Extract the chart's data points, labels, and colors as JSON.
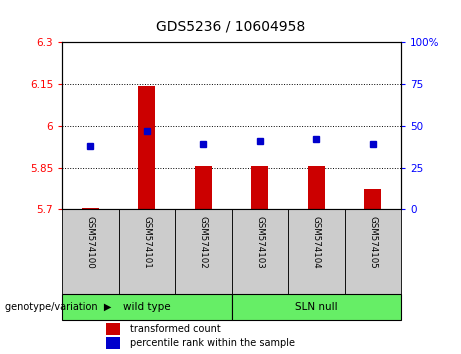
{
  "title": "GDS5236 / 10604958",
  "samples": [
    "GSM574100",
    "GSM574101",
    "GSM574102",
    "GSM574103",
    "GSM574104",
    "GSM574105"
  ],
  "red_values": [
    5.705,
    6.145,
    5.855,
    5.855,
    5.855,
    5.775
  ],
  "blue_values_pct": [
    38,
    47,
    39,
    41,
    42,
    39
  ],
  "ylim_left": [
    5.7,
    6.3
  ],
  "ylim_right": [
    0,
    100
  ],
  "yticks_left": [
    5.7,
    5.85,
    6.0,
    6.15,
    6.3
  ],
  "yticks_right": [
    0,
    25,
    50,
    75,
    100
  ],
  "hlines": [
    5.85,
    6.0,
    6.15
  ],
  "bar_color": "#cc0000",
  "dot_color": "#0000cc",
  "bar_width": 0.3,
  "genotype_label": "genotype/variation",
  "legend_red": "transformed count",
  "legend_blue": "percentile rank within the sample",
  "group_wild_label": "wild type",
  "group_sln_label": "SLN null",
  "group_color": "#66ee66"
}
